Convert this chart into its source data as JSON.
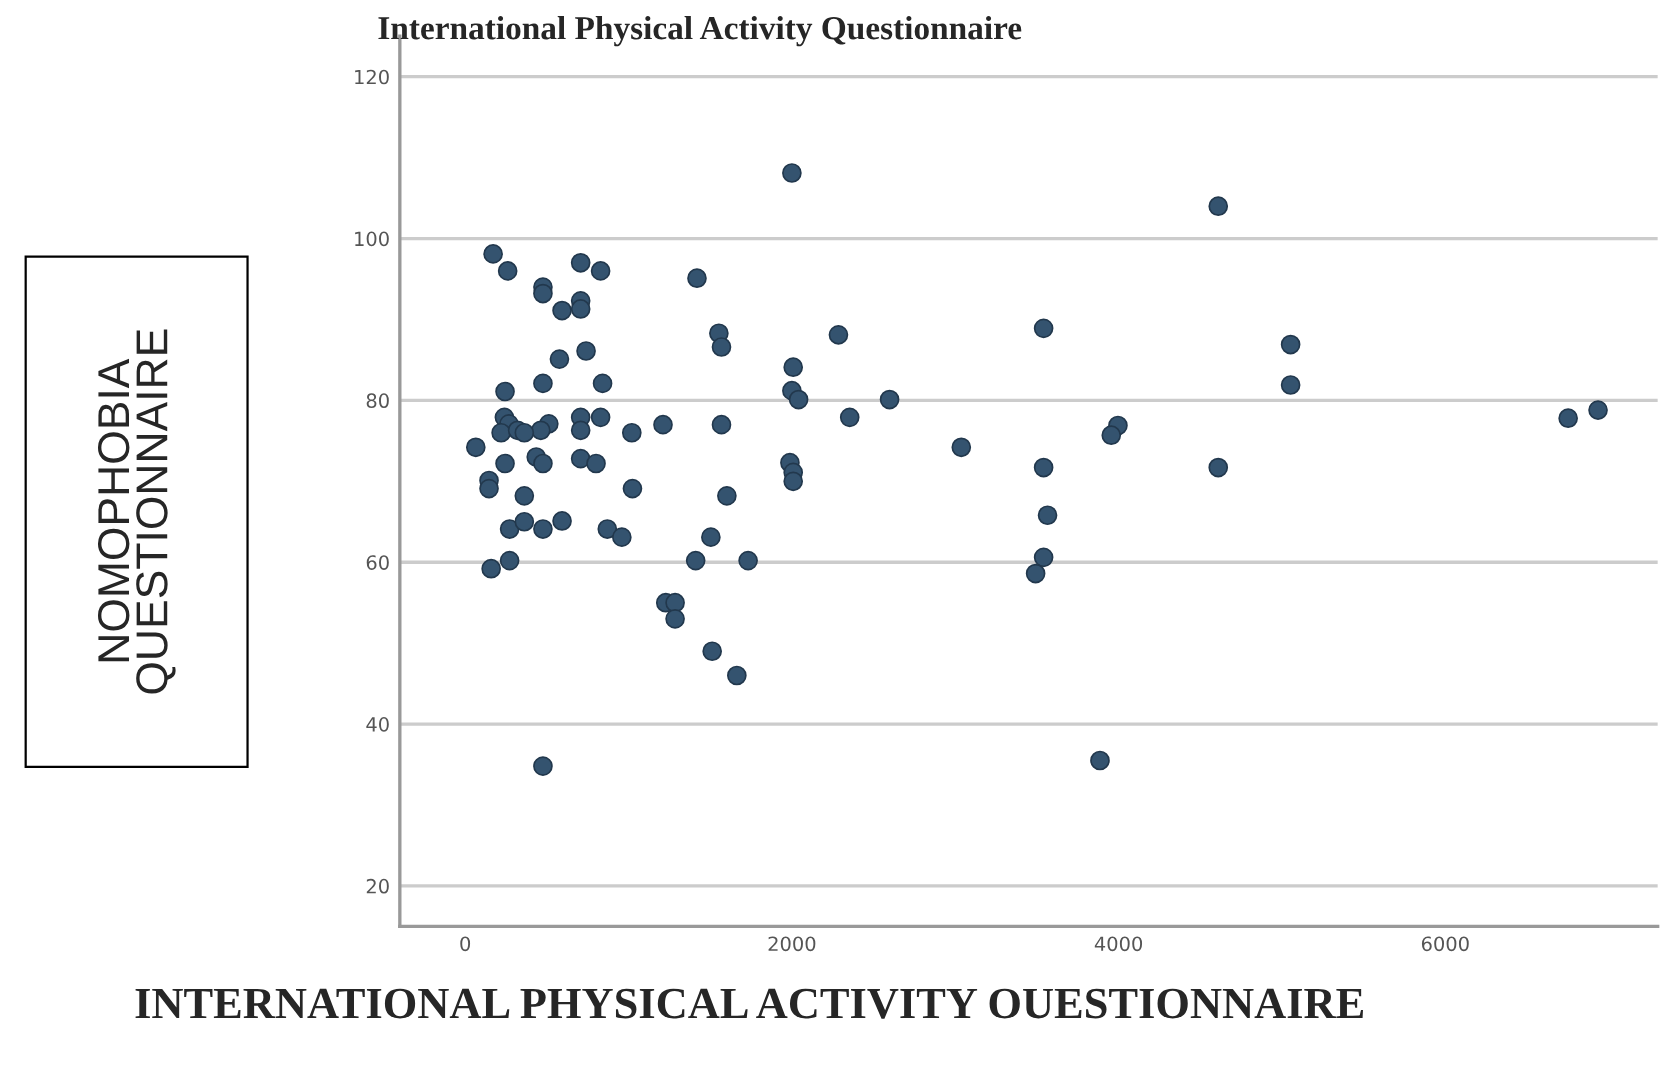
{
  "chart_data": {
    "type": "scatter",
    "title": "International Physical Activity Questionnaire",
    "xlabel": "INTERNATIONAL PHYSICAL ACTIVITY OUESTIONNAIRE",
    "ylabel": "NOMOPHOBIA\nQUESTIONNAIRE",
    "xlim": [
      -400,
      7300
    ],
    "ylim": [
      15,
      125
    ],
    "xticks": [
      0,
      2000,
      4000,
      6000
    ],
    "yticks": [
      20,
      40,
      60,
      80,
      100,
      120
    ],
    "grid": "y",
    "marker": "circle",
    "series": [
      {
        "color": "#34536f",
        "x": [
          171,
          260,
          476,
          476,
          593,
          707,
          707,
          707,
          829,
          1419,
          2000,
          1553,
          1569,
          2285,
          577,
          740,
          2008,
          2000,
          2041,
          244,
          476,
          841,
          2598,
          2354,
          1569,
          1211,
          1020,
          829,
          707,
          707,
          512,
          463,
          240,
          268,
          220,
          321,
          362,
          65,
          244,
          435,
          476,
          707,
          801,
          1024,
          3037,
          1988,
          2008,
          2008,
          146,
          146,
          362,
          1602,
          272,
          362,
          476,
          593,
          870,
          959,
          1504,
          159,
          272,
          1411,
          1732,
          1228,
          1285,
          1285,
          1512,
          1663,
          476,
          4610,
          3541,
          5053,
          5053,
          3996,
          3955,
          6752,
          6935,
          3541,
          4610,
          3565,
          3541,
          3492,
          3886
        ],
        "values": [
          98.1,
          96.0,
          94.0,
          93.2,
          91.1,
          92.3,
          91.3,
          97.0,
          96.0,
          95.1,
          108.1,
          88.3,
          86.6,
          88.1,
          85.1,
          86.1,
          84.1,
          81.2,
          80.1,
          81.1,
          82.1,
          82.1,
          80.1,
          77.9,
          77.0,
          77.0,
          76.0,
          77.9,
          77.9,
          76.3,
          77.1,
          76.3,
          77.9,
          77.1,
          76.0,
          76.3,
          76.0,
          74.2,
          72.2,
          73.0,
          72.2,
          72.8,
          72.2,
          69.1,
          74.2,
          72.3,
          71.1,
          70.0,
          70.1,
          69.1,
          68.2,
          68.2,
          64.1,
          65.0,
          64.1,
          65.1,
          64.1,
          63.1,
          63.1,
          59.2,
          60.2,
          60.2,
          60.2,
          55.0,
          55.0,
          53.0,
          49.0,
          46.0,
          34.8,
          104.0,
          88.9,
          86.9,
          81.9,
          76.9,
          75.7,
          77.8,
          78.8,
          71.7,
          71.7,
          65.8,
          60.6,
          58.6,
          35.5
        ]
      }
    ]
  }
}
